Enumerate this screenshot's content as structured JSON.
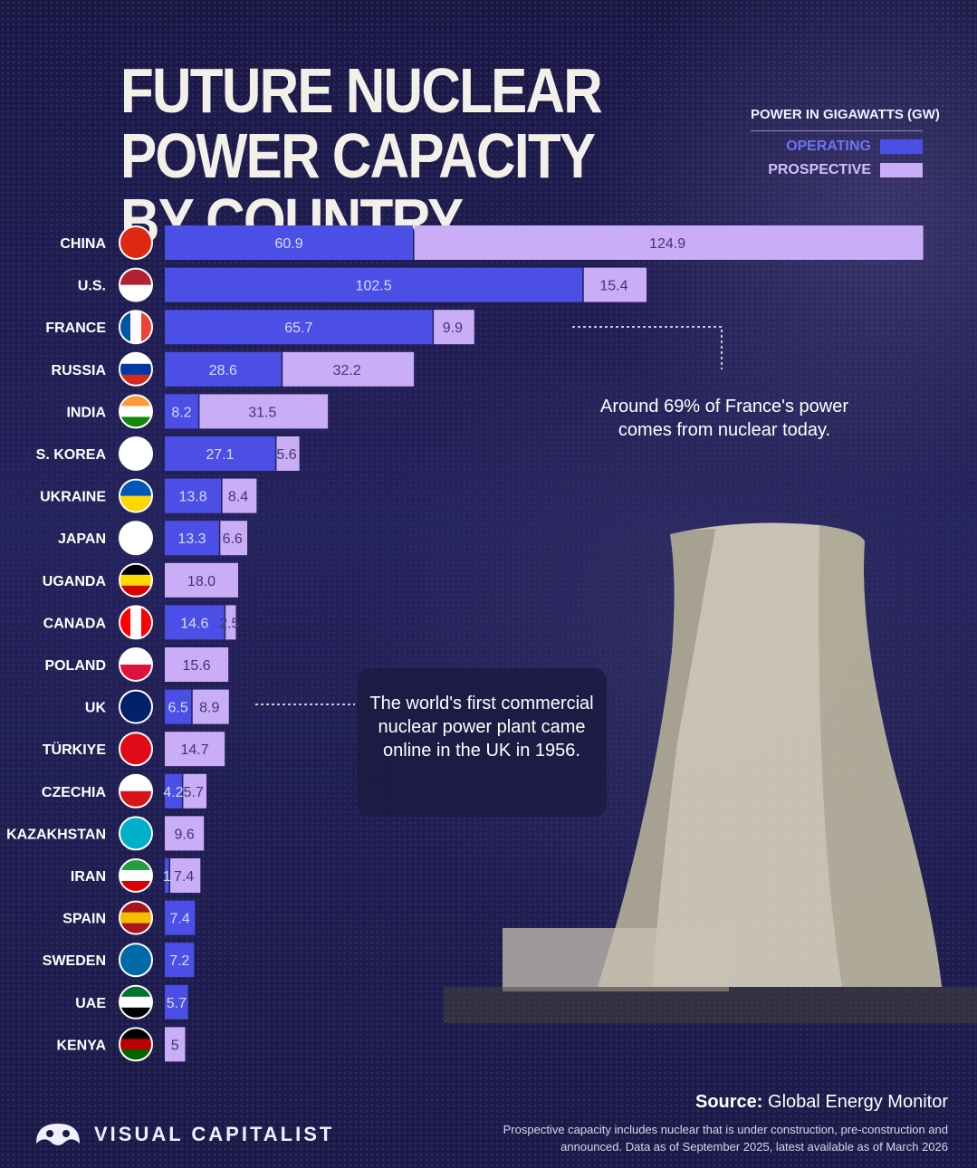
{
  "title": "FUTURE NUCLEAR POWER CAPACITY BY COUNTRY",
  "colors": {
    "operating": "#4b4fe6",
    "prospective": "#c9adf7",
    "background": "#1c1a45"
  },
  "chart_data": {
    "type": "bar",
    "orientation": "horizontal",
    "stacked": true,
    "title": "FUTURE NUCLEAR POWER CAPACITY BY COUNTRY",
    "legend": {
      "title": "POWER IN GIGAWATTS (GW)",
      "position": "top-right",
      "entries": [
        "OPERATING",
        "PROSPECTIVE"
      ]
    },
    "categories": [
      "CHINA",
      "U.S.",
      "FRANCE",
      "RUSSIA",
      "INDIA",
      "S. KOREA",
      "UKRAINE",
      "JAPAN",
      "UGANDA",
      "CANADA",
      "POLAND",
      "UK",
      "TÜRKIYE",
      "CZECHIA",
      "KAZAKHSTAN",
      "IRAN",
      "SPAIN",
      "SWEDEN",
      "UAE",
      "KENYA"
    ],
    "flags": [
      "china-flag-icon",
      "us-flag-icon",
      "france-flag-icon",
      "russia-flag-icon",
      "india-flag-icon",
      "south-korea-flag-icon",
      "ukraine-flag-icon",
      "japan-flag-icon",
      "uganda-flag-icon",
      "canada-flag-icon",
      "poland-flag-icon",
      "uk-flag-icon",
      "turkiye-flag-icon",
      "czechia-flag-icon",
      "kazakhstan-flag-icon",
      "iran-flag-icon",
      "spain-flag-icon",
      "sweden-flag-icon",
      "uae-flag-icon",
      "kenya-flag-icon"
    ],
    "series": [
      {
        "name": "OPERATING",
        "values": [
          60.9,
          102.5,
          65.7,
          28.6,
          8.2,
          27.1,
          13.8,
          13.3,
          0,
          14.6,
          0,
          6.5,
          0,
          4.2,
          0,
          1,
          7.4,
          7.2,
          5.7,
          0
        ]
      },
      {
        "name": "PROSPECTIVE",
        "values": [
          124.9,
          15.4,
          9.9,
          32.2,
          31.5,
          5.6,
          8.4,
          6.6,
          18.0,
          2.5,
          15.6,
          8.9,
          14.7,
          5.7,
          9.6,
          7.4,
          0,
          0,
          0,
          5
        ]
      }
    ],
    "labels": {
      "OPERATING": [
        "60.9",
        "102.5",
        "65.7",
        "28.6",
        "8.2",
        "27.1",
        "13.8",
        "13.3",
        "",
        "14.6",
        "",
        "6.5",
        "",
        "4.2",
        "",
        "1",
        "7.4",
        "7.2",
        "5.7",
        ""
      ],
      "PROSPECTIVE": [
        "124.9",
        "15.4",
        "9.9",
        "32.2",
        "31.5",
        "5.6",
        "8.4",
        "6.6",
        "18.0",
        "2.5",
        "15.6",
        "8.9",
        "14.7",
        "5.7",
        "9.6",
        "7.4",
        "",
        "",
        "",
        "5"
      ]
    },
    "annotations": [
      {
        "target": "FRANCE",
        "text": "Around 69% of France's power comes from nuclear today."
      },
      {
        "target": "UK",
        "text": "The world's first commercial nuclear power plant came online in the UK in 1956."
      }
    ]
  },
  "notes": {
    "france": "Around 69% of France's power comes from nuclear today.",
    "uk": "The world's first commercial nuclear power plant came online in the UK in 1956."
  },
  "source": {
    "label": "Source:",
    "name": "Global Energy Monitor"
  },
  "footnote": "Prospective capacity includes nuclear that is under construction, pre-construction and announced. Data as of September 2025, latest available as of March 2026",
  "brand": {
    "name": "VISUAL CAPITALIST",
    "icon": "visual-capitalist-logo-icon"
  }
}
